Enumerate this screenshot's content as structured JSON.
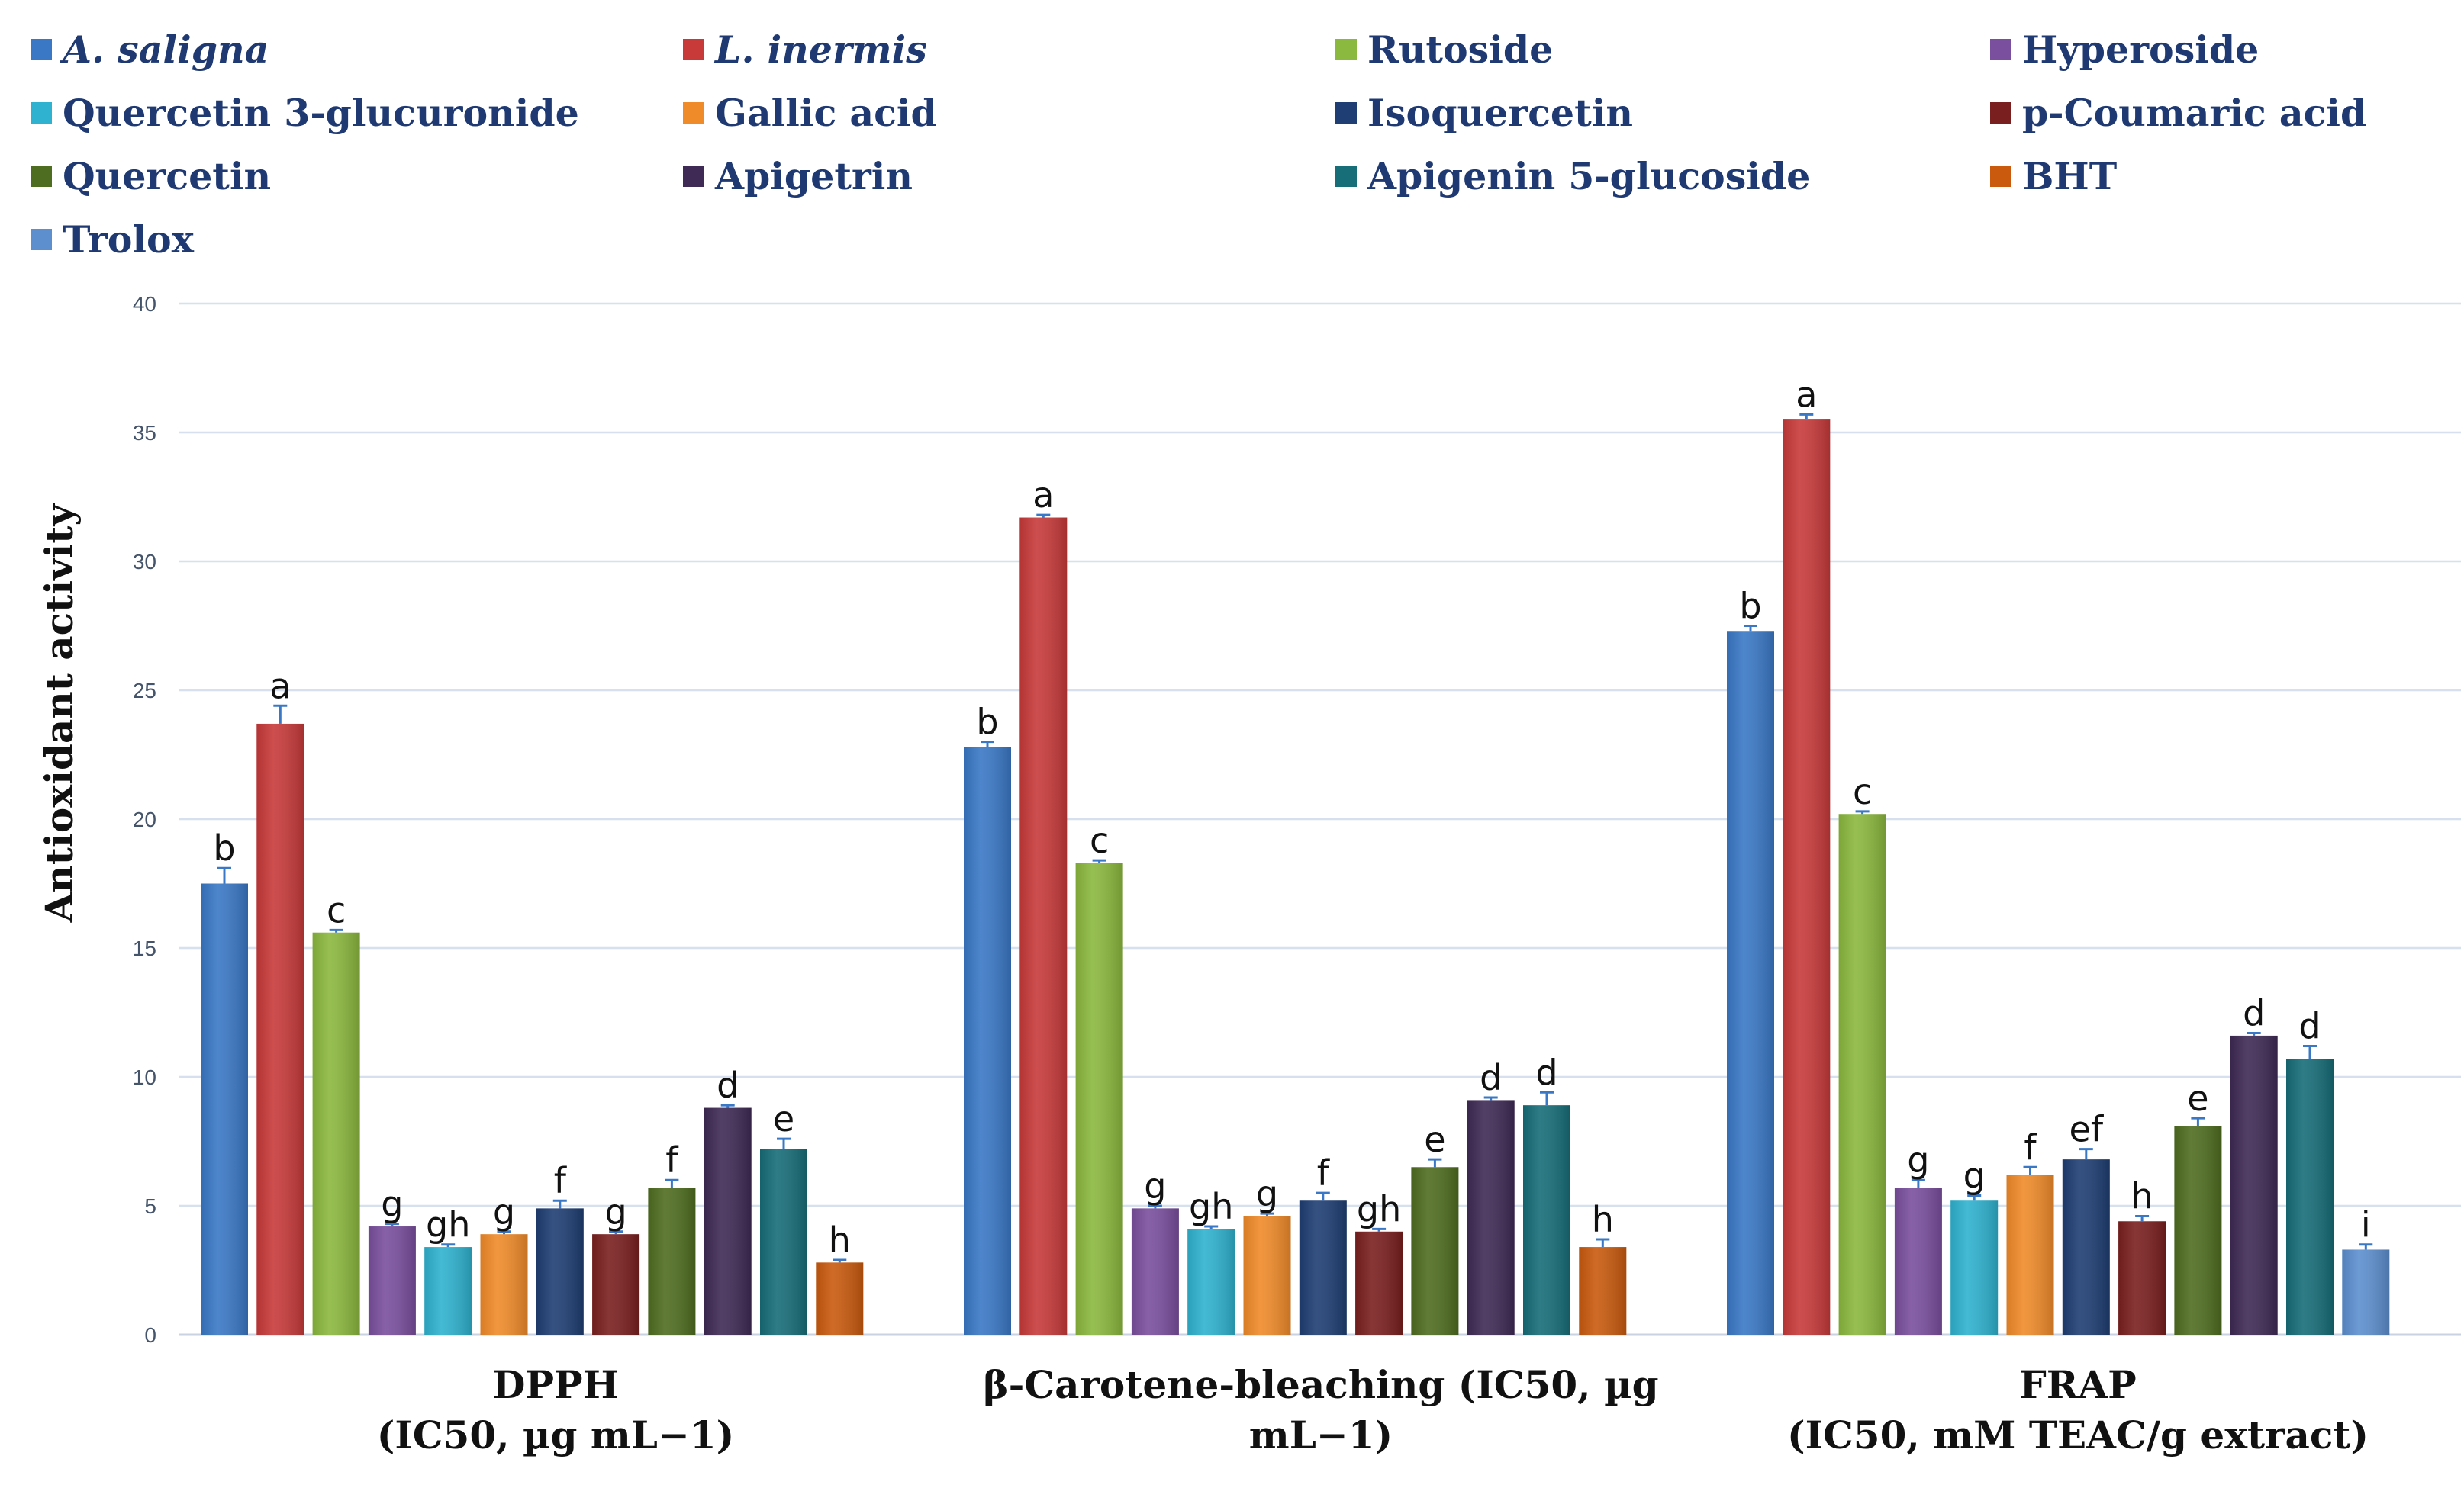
{
  "chart_data": {
    "type": "bar",
    "title": "",
    "xlabel": "",
    "ylabel": "Antioxidant activity",
    "ylim": [
      0,
      40
    ],
    "yticks": [
      0,
      5,
      10,
      15,
      20,
      25,
      30,
      35,
      40
    ],
    "grid": true,
    "legend_position": "top",
    "categories": [
      [
        "DPPH",
        "(IC50, µg mL−1)"
      ],
      [
        "β-Carotene-bleaching (IC50, µg",
        "mL−1)"
      ],
      [
        "FRAP",
        "(IC50, mM TEAC/g extract)"
      ]
    ],
    "series": [
      {
        "name": "A. saligna",
        "italic": true,
        "color": "#3A78C6",
        "values": [
          17.5,
          22.8,
          27.3
        ],
        "errors": [
          0.6,
          0.2,
          0.2
        ],
        "letters": [
          "b",
          "b",
          "b"
        ]
      },
      {
        "name": "L. inermis",
        "italic": true,
        "color": "#C83A3A",
        "values": [
          23.7,
          31.7,
          35.5
        ],
        "errors": [
          0.7,
          0.1,
          0.2
        ],
        "letters": [
          "a",
          "a",
          "a"
        ]
      },
      {
        "name": "Rutoside",
        "color": "#8BB83E",
        "values": [
          15.6,
          18.3,
          20.2
        ],
        "errors": [
          0.1,
          0.1,
          0.1
        ],
        "letters": [
          "c",
          "c",
          "c"
        ]
      },
      {
        "name": "Hyperoside",
        "color": "#7A4F9E",
        "values": [
          4.2,
          4.9,
          5.7
        ],
        "errors": [
          0.1,
          0.1,
          0.3
        ],
        "letters": [
          "g",
          "g",
          "g"
        ]
      },
      {
        "name": "Quercetin 3-glucuronide",
        "color": "#2FB2CF",
        "values": [
          3.4,
          4.1,
          5.2
        ],
        "errors": [
          0.1,
          0.1,
          0.2
        ],
        "letters": [
          "gh",
          "gh",
          "g"
        ]
      },
      {
        "name": "Gallic acid",
        "color": "#F08B2A",
        "values": [
          3.9,
          4.6,
          6.2
        ],
        "errors": [
          0.1,
          0.1,
          0.3
        ],
        "letters": [
          "g",
          "g",
          "f"
        ]
      },
      {
        "name": "Isoquercetin",
        "color": "#1F3E73",
        "values": [
          4.9,
          5.2,
          6.8
        ],
        "errors": [
          0.3,
          0.3,
          0.4
        ],
        "letters": [
          "f",
          "f",
          "ef"
        ]
      },
      {
        "name": "p-Coumaric acid",
        "color": "#7A1F1F",
        "values": [
          3.9,
          4.0,
          4.4
        ],
        "errors": [
          0.1,
          0.1,
          0.2
        ],
        "letters": [
          "g",
          "gh",
          "h"
        ]
      },
      {
        "name": "Quercetin",
        "color": "#4F6D20",
        "values": [
          5.7,
          6.5,
          8.1
        ],
        "errors": [
          0.3,
          0.3,
          0.3
        ],
        "letters": [
          "f",
          "e",
          "e"
        ]
      },
      {
        "name": "Apigetrin",
        "color": "#3F2A55",
        "values": [
          8.8,
          9.1,
          11.6
        ],
        "errors": [
          0.1,
          0.1,
          0.1
        ],
        "letters": [
          "d",
          "d",
          "d"
        ]
      },
      {
        "name": "Apigenin 5-glucoside",
        "color": "#176D78",
        "values": [
          7.2,
          8.9,
          10.7
        ],
        "errors": [
          0.4,
          0.5,
          0.5
        ],
        "letters": [
          "e",
          "d",
          "d"
        ]
      },
      {
        "name": "BHT",
        "color": "#C95A0E",
        "values": [
          2.8,
          3.4,
          null
        ],
        "errors": [
          0.1,
          0.3,
          null
        ],
        "letters": [
          "h",
          "h",
          ""
        ]
      },
      {
        "name": "Trolox",
        "color": "#5D8FCF",
        "values": [
          null,
          null,
          3.3
        ],
        "errors": [
          null,
          null,
          0.2
        ],
        "letters": [
          "",
          "",
          "i"
        ]
      }
    ]
  }
}
